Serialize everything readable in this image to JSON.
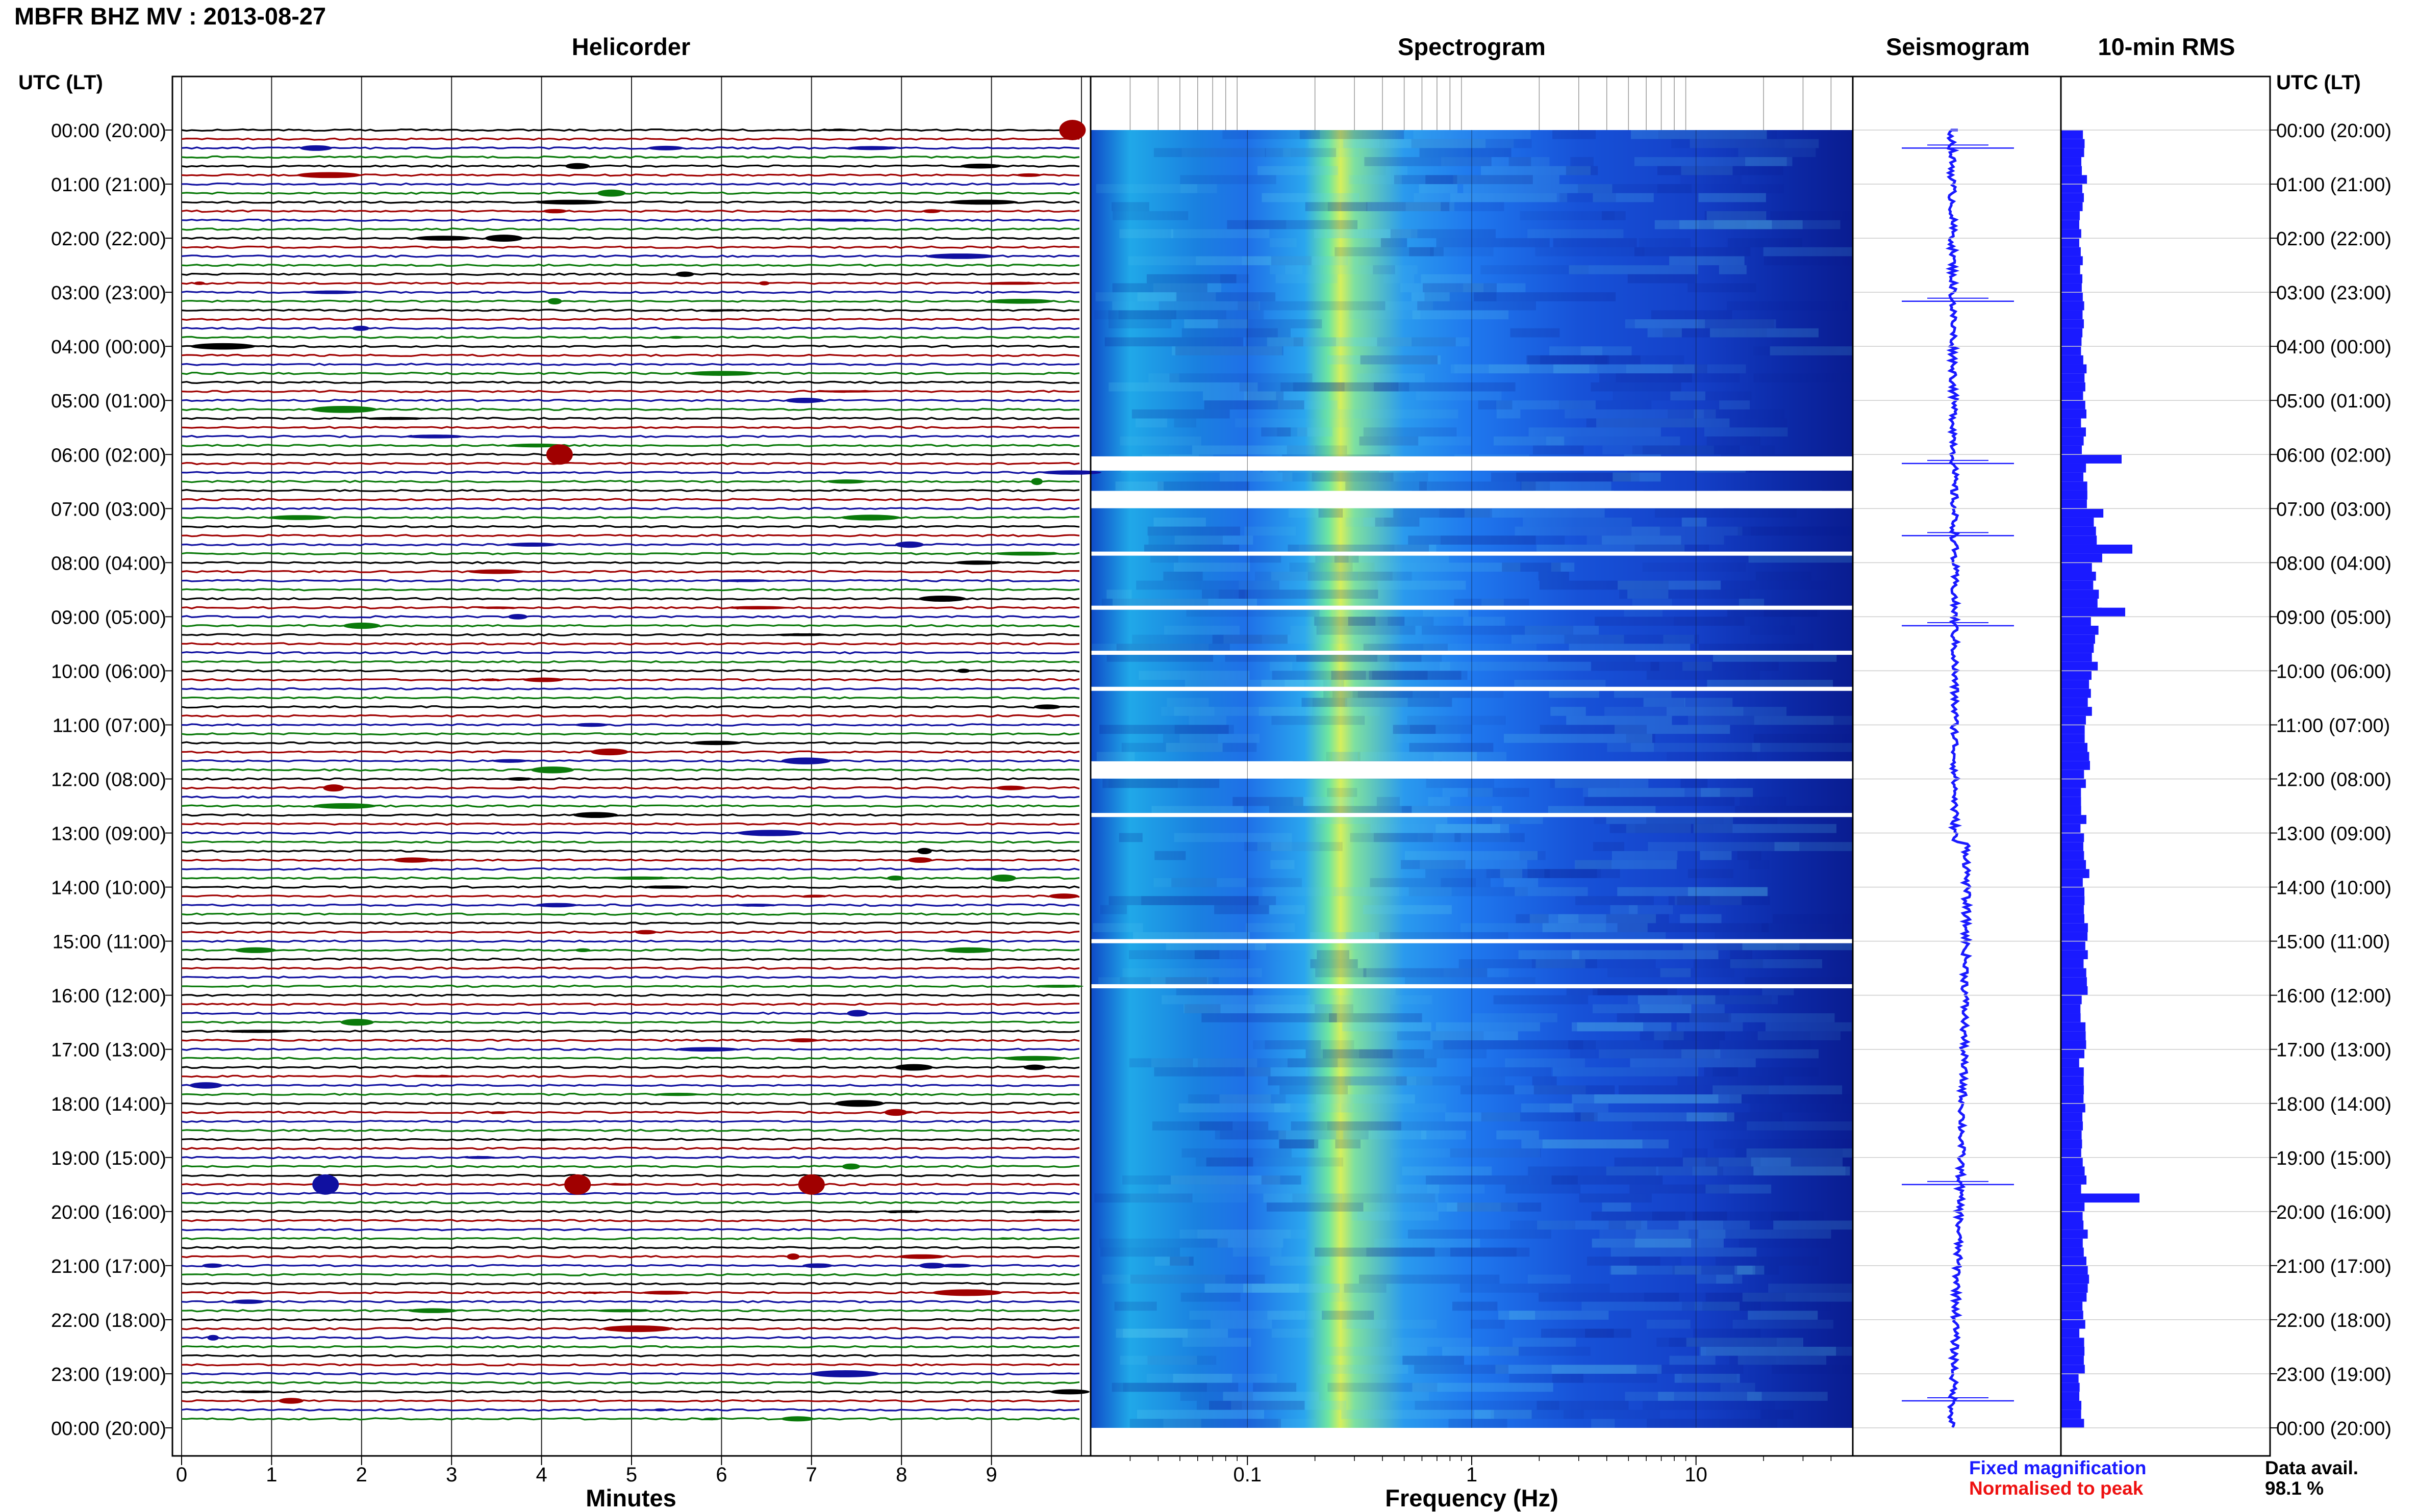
{
  "header": {
    "title": "MBFR BHZ MV : 2013-08-27"
  },
  "panels": {
    "helicorder": "Helicorder",
    "spectrogram": "Spectrogram",
    "seismogram": "Seismogram",
    "rms": "10-min RMS"
  },
  "utc_label_left": "UTC (LT)",
  "utc_label_right": "UTC (LT)",
  "time_labels": [
    "00:00 (20:00)",
    "01:00 (21:00)",
    "02:00 (22:00)",
    "03:00 (23:00)",
    "04:00 (00:00)",
    "05:00 (01:00)",
    "06:00 (02:00)",
    "07:00 (03:00)",
    "08:00 (04:00)",
    "09:00 (05:00)",
    "10:00 (06:00)",
    "11:00 (07:00)",
    "12:00 (08:00)",
    "13:00 (09:00)",
    "14:00 (10:00)",
    "15:00 (11:00)",
    "16:00 (12:00)",
    "17:00 (13:00)",
    "18:00 (14:00)",
    "19:00 (15:00)",
    "20:00 (16:00)",
    "21:00 (17:00)",
    "22:00 (18:00)",
    "23:00 (19:00)",
    "00:00 (20:00)"
  ],
  "helicorder_xticks": [
    "0",
    "1",
    "2",
    "3",
    "4",
    "5",
    "6",
    "7",
    "8",
    "9"
  ],
  "helicorder_xlabel": "Minutes",
  "spectrogram_xticks": [
    "0.1",
    "1",
    "10"
  ],
  "spectrogram_xlabel": "Frequency (Hz)",
  "legend": {
    "fixed": "Fixed magnification",
    "normalised": "Normalised to peak"
  },
  "colors": {
    "fixed": "#1a1aff",
    "normalised": "#ee1111",
    "trace_cycle": [
      "#000000",
      "#a00000",
      "#1010a0",
      "#0a7a0a"
    ]
  },
  "data_availability": {
    "label": "Data avail.",
    "value": "98.1 %"
  },
  "chart_data": [
    {
      "type": "line",
      "title": "Helicorder",
      "xlabel": "Minutes",
      "xlim": [
        0,
        10
      ],
      "rows_per_hour": 6,
      "trace_colors": [
        "black",
        "dark red",
        "blue",
        "green"
      ],
      "notable_events_minutes": [
        {
          "time": "00:00",
          "minute": 9.9
        },
        {
          "time": "06:00",
          "minute": 4.2
        },
        {
          "time": "19:30",
          "minute": 1.6
        },
        {
          "time": "19:30",
          "minute": 4.4
        },
        {
          "time": "19:30",
          "minute": 7.0
        }
      ]
    },
    {
      "type": "heatmap",
      "title": "Spectrogram",
      "xlabel": "Frequency (Hz)",
      "xscale": "log",
      "xlim": [
        0.02,
        50
      ],
      "xticks": [
        0.1,
        1,
        10
      ],
      "peak_band_hz": 0.25,
      "data_gaps_utc": [
        "06:10",
        "06:50",
        "07:50",
        "08:50",
        "09:40",
        "10:20",
        "11:50",
        "12:40",
        "15:00",
        "15:50"
      ]
    },
    {
      "type": "line",
      "title": "Seismogram",
      "large_events_utc": [
        "00:20",
        "03:10",
        "06:10",
        "07:30",
        "09:10",
        "19:30",
        "23:30"
      ]
    },
    {
      "type": "bar",
      "title": "10-min RMS",
      "orientation": "horizontal",
      "units": "relative",
      "row_interval_min": 10,
      "hourly_profile": [
        0.45,
        0.4,
        0.38,
        0.42,
        0.44,
        0.46,
        0.5,
        0.75,
        0.7,
        0.65,
        0.55,
        0.5,
        0.45,
        0.5,
        0.48,
        0.5,
        0.45,
        0.42,
        0.43,
        0.45,
        0.5,
        0.48,
        0.42,
        0.4
      ],
      "peaks": [
        {
          "time": "06:00",
          "value": 0.85
        },
        {
          "time": "07:40",
          "value": 1.0
        },
        {
          "time": "08:50",
          "value": 0.9
        },
        {
          "time": "19:40",
          "value": 1.1
        }
      ]
    }
  ]
}
